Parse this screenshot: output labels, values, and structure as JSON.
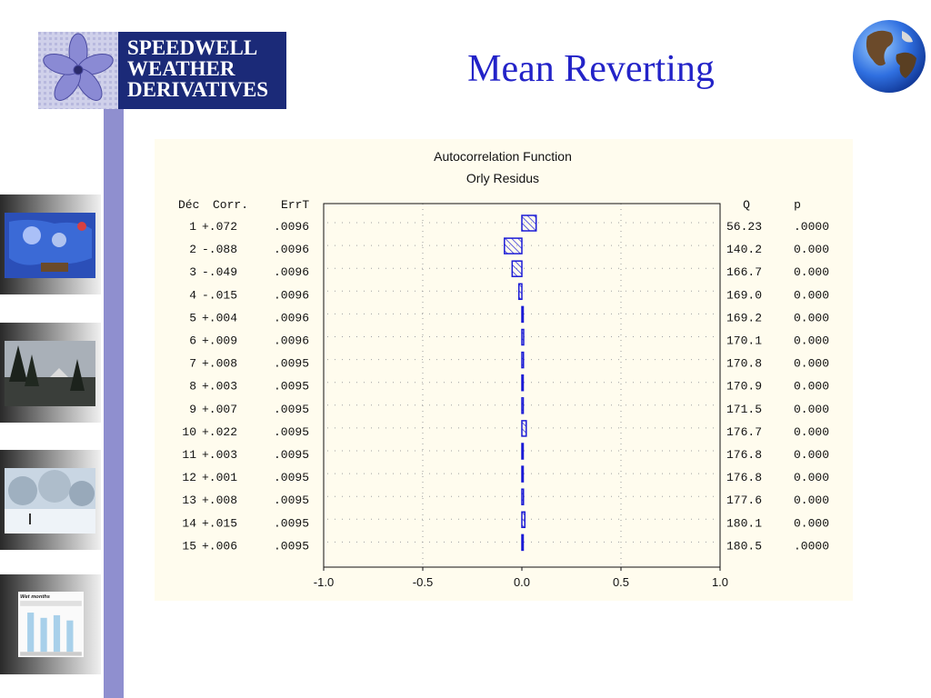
{
  "slide": {
    "title": "Mean Reverting"
  },
  "logo": {
    "line1": "SPEEDWELL",
    "line2": "WEATHER",
    "line3": "DERIVATIVES"
  },
  "thumbnails": [
    {
      "name": "weather-map-thumbnail"
    },
    {
      "name": "trees-thumbnail"
    },
    {
      "name": "snow-scene-thumbnail"
    },
    {
      "name": "wet-months-chart-thumbnail",
      "label": "Wet months"
    }
  ],
  "colors": {
    "title": "#2323c8",
    "bar": "#1a1ad6",
    "left_bar": "#8f8fcf",
    "logo_bg": "#1b2a78",
    "panel_bg": "#fffcee"
  },
  "chart_data": {
    "type": "bar",
    "orientation": "horizontal",
    "title": "Autocorrelation Function",
    "subtitle": "Orly Residus",
    "headers": {
      "lag": "Déc",
      "corr": "Corr.",
      "err": "ErrT",
      "q": "Q",
      "p": "p"
    },
    "rows": [
      {
        "lag": "1",
        "corr": "+.072",
        "err": ".0096",
        "q": "56.23",
        "p": ".0000"
      },
      {
        "lag": "2",
        "corr": "-.088",
        "err": ".0096",
        "q": "140.2",
        "p": "0.000"
      },
      {
        "lag": "3",
        "corr": "-.049",
        "err": ".0096",
        "q": "166.7",
        "p": "0.000"
      },
      {
        "lag": "4",
        "corr": "-.015",
        "err": ".0096",
        "q": "169.0",
        "p": "0.000"
      },
      {
        "lag": "5",
        "corr": "+.004",
        "err": ".0096",
        "q": "169.2",
        "p": "0.000"
      },
      {
        "lag": "6",
        "corr": "+.009",
        "err": ".0096",
        "q": "170.1",
        "p": "0.000"
      },
      {
        "lag": "7",
        "corr": "+.008",
        "err": ".0095",
        "q": "170.8",
        "p": "0.000"
      },
      {
        "lag": "8",
        "corr": "+.003",
        "err": ".0095",
        "q": "170.9",
        "p": "0.000"
      },
      {
        "lag": "9",
        "corr": "+.007",
        "err": ".0095",
        "q": "171.5",
        "p": "0.000"
      },
      {
        "lag": "10",
        "corr": "+.022",
        "err": ".0095",
        "q": "176.7",
        "p": "0.000"
      },
      {
        "lag": "11",
        "corr": "+.003",
        "err": ".0095",
        "q": "176.8",
        "p": "0.000"
      },
      {
        "lag": "12",
        "corr": "+.001",
        "err": ".0095",
        "q": "176.8",
        "p": "0.000"
      },
      {
        "lag": "13",
        "corr": "+.008",
        "err": ".0095",
        "q": "177.6",
        "p": "0.000"
      },
      {
        "lag": "14",
        "corr": "+.015",
        "err": ".0095",
        "q": "180.1",
        "p": "0.000"
      },
      {
        "lag": "15",
        "corr": "+.006",
        "err": ".0095",
        "q": "180.5",
        "p": ".0000"
      }
    ],
    "values": [
      0.072,
      -0.088,
      -0.049,
      -0.015,
      0.004,
      0.009,
      0.008,
      0.003,
      0.007,
      0.022,
      0.003,
      0.001,
      0.008,
      0.015,
      0.006
    ],
    "xlim": [
      -1.0,
      1.0
    ],
    "xticks": [
      "-1.0",
      "-0.5",
      "0.0",
      "0.5",
      "1.0"
    ],
    "grid": true
  }
}
